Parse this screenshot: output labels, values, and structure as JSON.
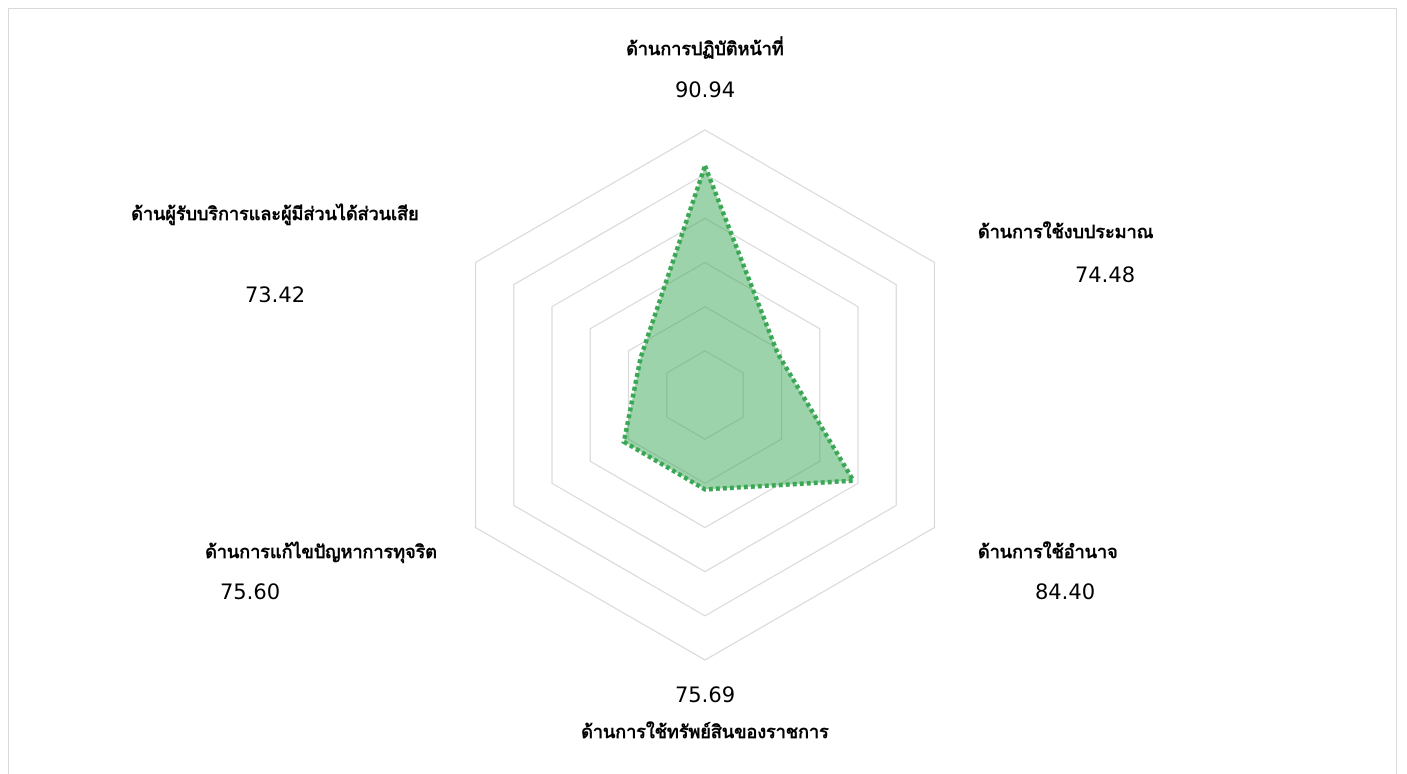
{
  "chart_data": {
    "type": "radar",
    "categories": [
      "ด้านการปฏิบัติหน้าที่",
      "ด้านการใช้งบประมาณ",
      "ด้านการใช้อำนาจ",
      "ด้านการใช้ทรัพย์สินของราชการ",
      "ด้านการแก้ไขปัญหาการทุจริต",
      "ด้านผู้รับบริการและผู้มีส่วนได้ส่วนเสีย"
    ],
    "values": [
      90.94,
      74.48,
      84.4,
      75.69,
      75.6,
      73.42
    ],
    "value_labels": [
      "90.94",
      "74.48",
      "84.40",
      "75.69",
      "75.60",
      "73.42"
    ],
    "color": "#3aa755",
    "ylim": [
      65,
      95
    ],
    "yticks": [
      65,
      70,
      75,
      80,
      85,
      90,
      95
    ],
    "grid": true
  }
}
